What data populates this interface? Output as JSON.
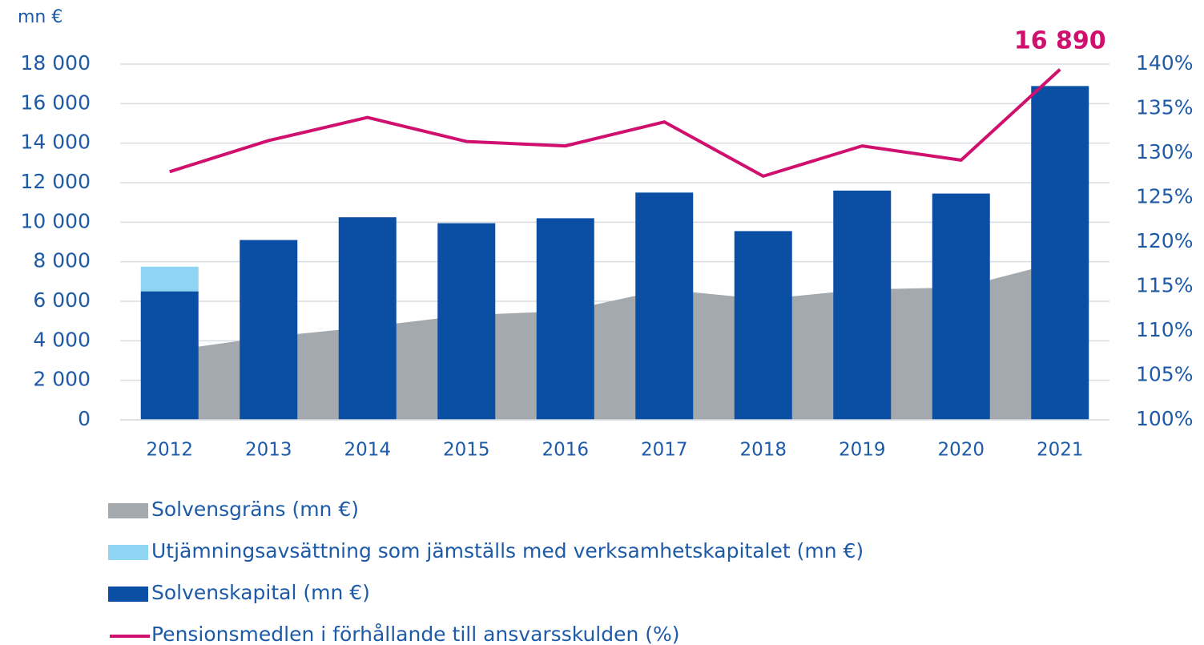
{
  "chart_data": {
    "type": "bar",
    "y_label": "mn €",
    "categories": [
      "2012",
      "2013",
      "2014",
      "2015",
      "2016",
      "2017",
      "2018",
      "2019",
      "2020",
      "2021"
    ],
    "ylim": [
      0,
      18000
    ],
    "yticks": [
      0,
      {
        "value": 2000,
        "label": "2 000"
      },
      {
        "value": 4000,
        "label": "4 000"
      },
      {
        "value": 6000,
        "label": "6 000"
      },
      {
        "value": 8000,
        "label": "8 000"
      },
      {
        "value": 10000,
        "label": "10 000"
      },
      {
        "value": 12000,
        "label": "12 000"
      },
      {
        "value": 14000,
        "label": "14 000"
      },
      {
        "value": 16000,
        "label": "16 000"
      },
      {
        "value": 18000,
        "label": "18 000"
      }
    ],
    "y2lim": [
      100,
      140
    ],
    "y2ticks": [
      {
        "value": 100,
        "label": "100%"
      },
      {
        "value": 105,
        "label": "105%"
      },
      {
        "value": 110,
        "label": "110%"
      },
      {
        "value": 115,
        "label": "115%"
      },
      {
        "value": 120,
        "label": "120%"
      },
      {
        "value": 125,
        "label": "125%"
      },
      {
        "value": 130,
        "label": "130%"
      },
      {
        "value": 135,
        "label": "135%"
      },
      {
        "value": 140,
        "label": "140%"
      }
    ],
    "grid": true,
    "series": [
      {
        "name": "Solvensgräns (mn €)",
        "type": "area",
        "color": "#a3a9ad",
        "values": [
          3500,
          4200,
          4700,
          5300,
          5500,
          6600,
          6100,
          6600,
          6700,
          8000
        ]
      },
      {
        "name": "Utjämningsavsättning som jämställs med verksamhetskapitalet (mn €)",
        "type": "bar",
        "stack": "base",
        "color": "#8fd4f2",
        "values": [
          1250,
          null,
          null,
          null,
          null,
          null,
          null,
          null,
          null,
          null
        ]
      },
      {
        "name": "Solvenskapital (mn €)",
        "type": "bar",
        "color": "#0a4fa3",
        "values": [
          6500,
          9100,
          10250,
          9950,
          10200,
          11500,
          9550,
          11600,
          11450,
          16890
        ],
        "value_labels": [
          null,
          null,
          null,
          null,
          null,
          null,
          null,
          null,
          null,
          "16 890"
        ],
        "value_label_color": "#d0106e"
      },
      {
        "name": "Pensionsmedlen i förhållande till ansvarsskulden (%)",
        "type": "line",
        "axis": "y2",
        "color": "#d0106e",
        "values": [
          127.9,
          131.4,
          134.0,
          131.3,
          130.8,
          133.5,
          127.4,
          130.8,
          129.2,
          139.4
        ]
      }
    ]
  }
}
